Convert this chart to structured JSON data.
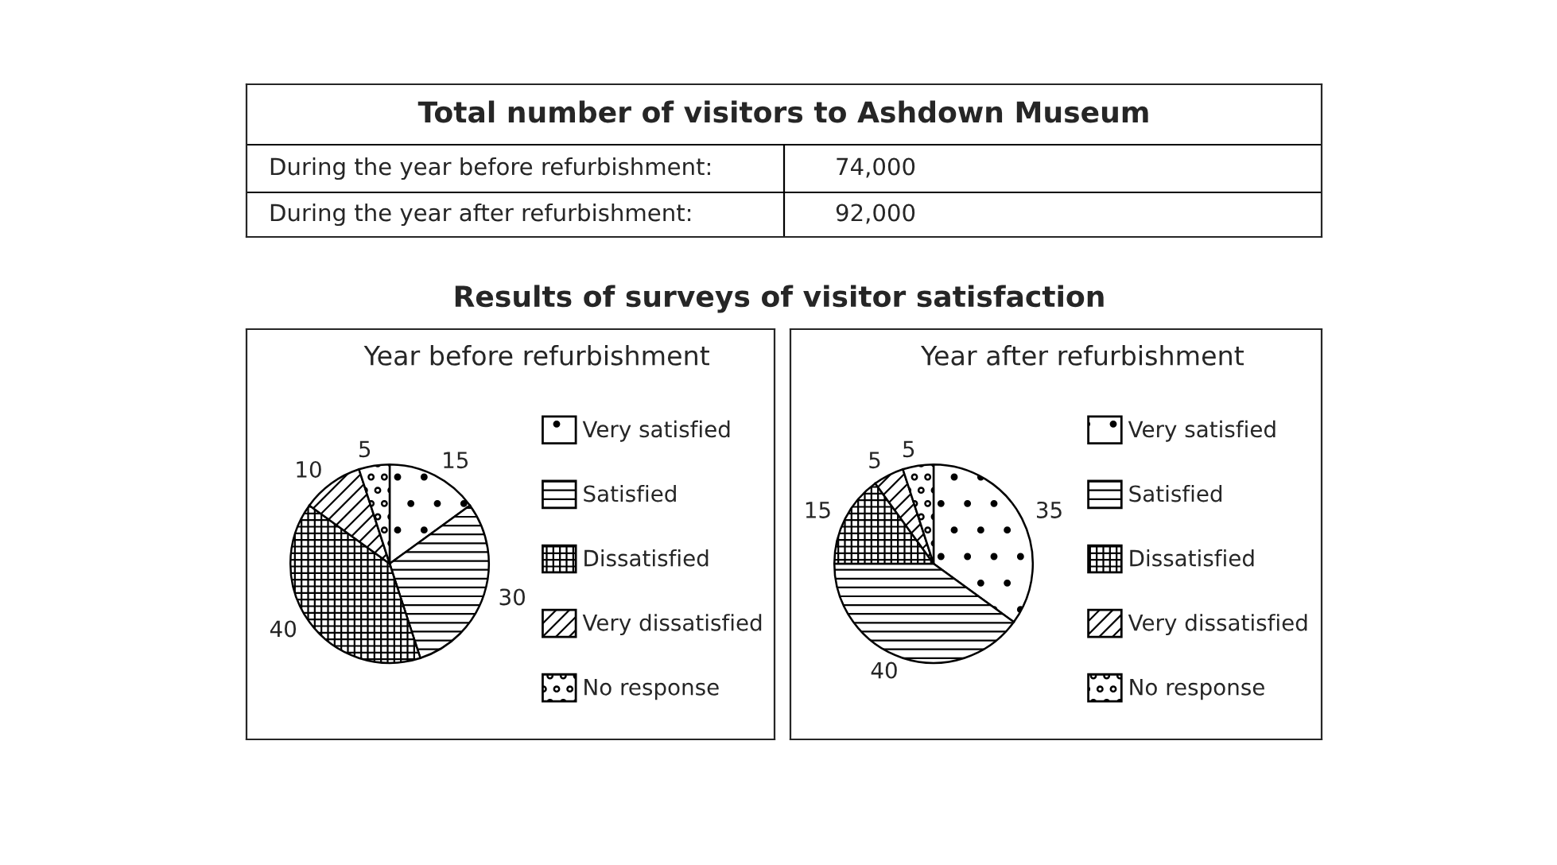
{
  "chart_data": [
    {
      "type": "other",
      "title": "Total number of visitors to Ashdown Museum",
      "annotations": [
        "During the year before refurbishment:",
        "74,000",
        "During the year after refurbishment:",
        "92,000",
        "Results of surveys of visitor satisfaction"
      ]
    },
    {
      "type": "pie",
      "title": "Year before refurbishment",
      "categories": [
        "Very satisfied",
        "Satisfied",
        "Dissatisfied",
        "Very dissatisfied",
        "No response"
      ],
      "values": [
        15,
        30,
        40,
        10,
        5
      ],
      "colors": [
        "#ffffff",
        "#ffffff",
        "#ffffff",
        "#ffffff",
        "#ffffff"
      ],
      "legend": "right",
      "data_labels": true
    },
    {
      "type": "pie",
      "title": "Year after refurbishment",
      "categories": [
        "Very satisfied",
        "Satisfied",
        "Dissatisfied",
        "Very dissatisfied",
        "No response"
      ],
      "values": [
        35,
        40,
        15,
        5,
        5
      ],
      "colors": [
        "#ffffff",
        "#ffffff",
        "#ffffff",
        "#ffffff",
        "#ffffff"
      ],
      "legend": "right",
      "data_labels": true
    }
  ]
}
